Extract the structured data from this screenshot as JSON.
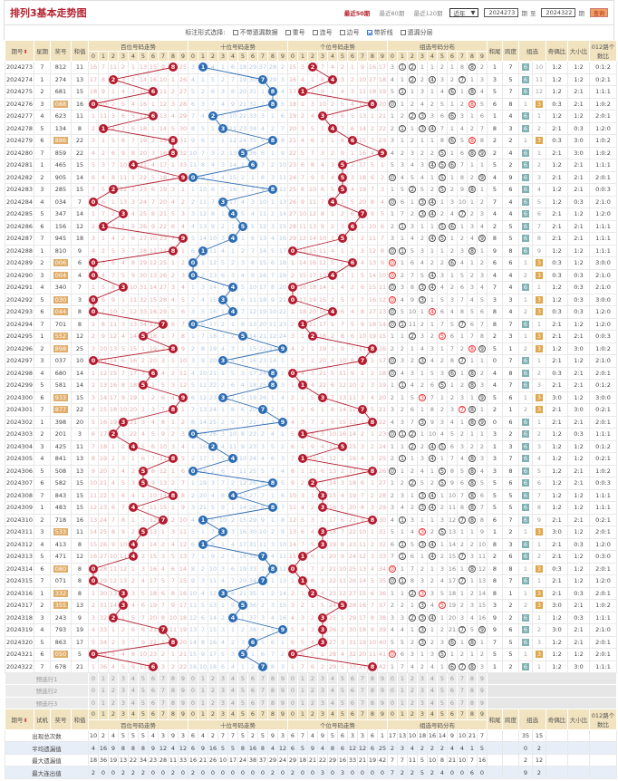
{
  "header": {
    "title": "排列3基本走势图",
    "nav": [
      "最近50期",
      "最近80期",
      "最近120期"
    ],
    "nav_active": 0,
    "range_select": "近年",
    "from": "2024273",
    "from_unit": "期",
    "to_label": "至",
    "to": "2024322",
    "to_unit": "期",
    "query": "查询"
  },
  "options": {
    "label": "标注形式选择:",
    "items": [
      {
        "label": "不带遗漏数据",
        "checked": false
      },
      {
        "label": "重号",
        "checked": false
      },
      {
        "label": "连号",
        "checked": false
      },
      {
        "label": "边号",
        "checked": false
      },
      {
        "label": "带折线",
        "checked": true
      },
      {
        "label": "遗漏分层",
        "checked": false
      }
    ]
  },
  "columns": {
    "period": "期号",
    "weekday": "星期",
    "draw": "奖号",
    "sum": "和值",
    "trial": "试机",
    "sections": [
      "百位号码走势",
      "十位号码走势",
      "个位号码走势",
      "组选号码分布"
    ],
    "sum_tail": "和尾",
    "span": "跨度",
    "group": "组选",
    "odd_even": "奇偶比",
    "big_small": "大小比",
    "route012": "012路个数比",
    "digits": [
      "0",
      "1",
      "2",
      "3",
      "4",
      "5",
      "6",
      "7",
      "8",
      "9"
    ]
  },
  "colors": {
    "hundreds": "#b51b2e",
    "tens": "#2c6db4",
    "units": "#b51b2e",
    "group3": "#e0a64a",
    "group6": "#7fb1b3"
  },
  "rows": [
    [
      "2024273",
      "7",
      "812",
      "11"
    ],
    [
      "2024274",
      "1",
      "274",
      "13"
    ],
    [
      "2024275",
      "2",
      "681",
      "15"
    ],
    [
      "2024276",
      "3",
      "088",
      "16"
    ],
    [
      "2024277",
      "4",
      "623",
      "11"
    ],
    [
      "2024278",
      "5",
      "134",
      "8"
    ],
    [
      "2024279",
      "6",
      "886",
      "22"
    ],
    [
      "2024280",
      "7",
      "859",
      "22"
    ],
    [
      "2024281",
      "1",
      "465",
      "15"
    ],
    [
      "2024282",
      "2",
      "905",
      "14"
    ],
    [
      "2024283",
      "3",
      "285",
      "15"
    ],
    [
      "2024284",
      "4",
      "034",
      "7"
    ],
    [
      "2024285",
      "5",
      "347",
      "14"
    ],
    [
      "2024286",
      "6",
      "156",
      "12"
    ],
    [
      "2024287",
      "7",
      "945",
      "18"
    ],
    [
      "2024288",
      "1",
      "810",
      "9"
    ],
    [
      "2024289",
      "2",
      "006",
      "6"
    ],
    [
      "2024290",
      "3",
      "004",
      "4"
    ],
    [
      "2024291",
      "4",
      "340",
      "7"
    ],
    [
      "2024292",
      "5",
      "030",
      "3"
    ],
    [
      "2024293",
      "6",
      "044",
      "8"
    ],
    [
      "2024294",
      "7",
      "701",
      "8"
    ],
    [
      "2024295",
      "1",
      "552",
      "12"
    ],
    [
      "2024296",
      "2",
      "898",
      "25"
    ],
    [
      "2024297",
      "3",
      "037",
      "10"
    ],
    [
      "2024298",
      "4",
      "680",
      "14"
    ],
    [
      "2024299",
      "5",
      "581",
      "14"
    ],
    [
      "2024300",
      "6",
      "933",
      "15"
    ],
    [
      "2024301",
      "7",
      "877",
      "22"
    ],
    [
      "2024302",
      "1",
      "398",
      "20"
    ],
    [
      "2024303",
      "2",
      "201",
      "3"
    ],
    [
      "2024304",
      "3",
      "425",
      "11"
    ],
    [
      "2024305",
      "4",
      "841",
      "13"
    ],
    [
      "2024306",
      "5",
      "508",
      "13"
    ],
    [
      "2024307",
      "6",
      "582",
      "15"
    ],
    [
      "2024308",
      "7",
      "843",
      "15"
    ],
    [
      "2024309",
      "1",
      "483",
      "15"
    ],
    [
      "2024310",
      "2",
      "718",
      "16"
    ],
    [
      "2024311",
      "3",
      "533",
      "11"
    ],
    [
      "2024312",
      "4",
      "413",
      "8"
    ],
    [
      "2024313",
      "5",
      "471",
      "12"
    ],
    [
      "2024314",
      "6",
      "080",
      "8"
    ],
    [
      "2024315",
      "7",
      "071",
      "8"
    ],
    [
      "2024316",
      "1",
      "332",
      "8"
    ],
    [
      "2024317",
      "2",
      "355",
      "13"
    ],
    [
      "2024318",
      "3",
      "243",
      "9"
    ],
    [
      "2024319",
      "4",
      "793",
      "19"
    ],
    [
      "2024320",
      "5",
      "863",
      "17"
    ],
    [
      "2024321",
      "6",
      "050",
      "5"
    ],
    [
      "2024322",
      "7",
      "678",
      "21"
    ]
  ],
  "first_row_omission": {
    "hundreds": [
      16,
      7,
      11,
      2,
      1,
      13,
      15,
      9,
      0,
      25
    ],
    "tens": [
      3,
      0,
      4,
      1,
      6,
      18,
      29,
      37,
      28,
      2
    ],
    "units": [
      15,
      3,
      0,
      7,
      4,
      2,
      1,
      9,
      16,
      17
    ],
    "group": [
      3,
      0,
      0,
      1,
      1,
      2,
      1,
      8,
      0,
      2
    ],
    "group6": 0,
    "group3": 10
  },
  "preselect": [
    "预选行1",
    "预选行2",
    "预选行3"
  ],
  "stats": [
    {
      "label": "出现总次数",
      "hundreds": [
        10,
        2,
        4,
        5,
        5,
        5,
        4,
        3,
        9,
        3
      ],
      "tens": [
        6,
        4,
        2,
        7,
        7,
        5,
        2,
        5,
        9,
        3
      ],
      "units": [
        6,
        7,
        4,
        9,
        5,
        6,
        3,
        3,
        6,
        1
      ],
      "group": [
        17,
        13,
        10,
        18,
        16,
        14,
        9,
        10,
        21,
        7
      ],
      "group_type": [
        35,
        15
      ]
    },
    {
      "label": "平均遗漏值",
      "hundreds": [
        4,
        16,
        9,
        8,
        8,
        8,
        9,
        12,
        4,
        12
      ],
      "tens": [
        6,
        9,
        16,
        5,
        5,
        8,
        16,
        8,
        4,
        12
      ],
      "units": [
        6,
        5,
        9,
        4,
        8,
        6,
        12,
        12,
        6,
        25
      ],
      "group": [
        2,
        3,
        4,
        2,
        2,
        2,
        4,
        4,
        1,
        5
      ],
      "group_type": [
        0,
        2
      ]
    },
    {
      "label": "最大遗漏值",
      "hundreds": [
        18,
        36,
        19,
        13,
        22,
        34,
        23,
        28,
        11,
        33
      ],
      "tens": [
        16,
        21,
        26,
        10,
        17,
        24,
        38,
        37,
        29,
        24
      ],
      "units": [
        29,
        18,
        21,
        22,
        29,
        16,
        33,
        21,
        19,
        42
      ],
      "group": [
        7,
        7,
        11,
        5,
        10,
        8,
        21,
        10,
        7,
        16
      ],
      "group_type": [
        2,
        12
      ]
    },
    {
      "label": "最大连出值",
      "hundreds": [
        2,
        0,
        0,
        2,
        2,
        2,
        0,
        0,
        2,
        0
      ],
      "tens": [
        2,
        0,
        0,
        0,
        0,
        0,
        0,
        0,
        2,
        0
      ],
      "units": [
        2,
        0,
        0,
        3,
        0,
        3,
        0,
        0,
        0,
        0
      ],
      "group": [
        7,
        2,
        2,
        5,
        2,
        4,
        0,
        0,
        6,
        0
      ],
      "group_type": [
        9,
        2
      ]
    }
  ]
}
